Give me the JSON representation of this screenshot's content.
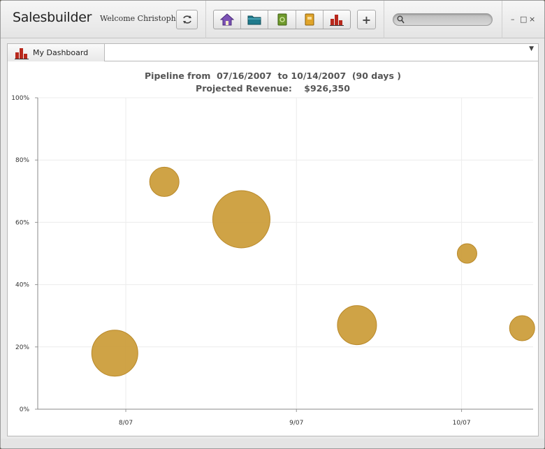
{
  "app": {
    "title": "Salesbuilder",
    "welcome": "Welcome Christophe"
  },
  "toolbar": {
    "refresh_icon": "refresh-icon",
    "nav_buttons": [
      {
        "name": "home",
        "icon": "home-icon",
        "color": "#6b3fa0"
      },
      {
        "name": "folder",
        "icon": "folder-icon",
        "color": "#1f7a8c"
      },
      {
        "name": "contacts",
        "icon": "green-book-icon",
        "color": "#6a8f2a"
      },
      {
        "name": "notes",
        "icon": "orange-book-icon",
        "color": "#d49a1c"
      },
      {
        "name": "dashboard",
        "icon": "bar-chart-icon",
        "color": "#b8281c"
      }
    ],
    "add_label": "+",
    "search": {
      "placeholder": "",
      "value": ""
    },
    "window_controls": [
      "–",
      "□",
      "×"
    ]
  },
  "tabs": [
    {
      "label": "My Dashboard",
      "icon": "bar-chart-icon",
      "active": true
    }
  ],
  "chart_data": {
    "type": "scatter",
    "title_line1": "Pipeline from  07/16/2007  to 10/14/2007  (90 days )",
    "title_line2": "Projected Revenue:    $926,350",
    "xlabel": "",
    "ylabel": "",
    "x_ticks": [
      "8/07",
      "9/07",
      "10/07"
    ],
    "x_tick_dates": [
      "2007-08-01",
      "2007-09-01",
      "2007-10-01"
    ],
    "xlim": [
      "2007-07-16",
      "2007-10-14"
    ],
    "y_ticks": [
      "0%",
      "20%",
      "40%",
      "60%",
      "80%",
      "100%"
    ],
    "ylim": [
      0,
      100
    ],
    "grid": true,
    "bubble_color": "#cc9e3c",
    "bubble_stroke": "#b9892a",
    "points": [
      {
        "x": "2007-07-30",
        "y": 18,
        "size": 33
      },
      {
        "x": "2007-08-08",
        "y": 73,
        "size": 21
      },
      {
        "x": "2007-08-22",
        "y": 61,
        "size": 41
      },
      {
        "x": "2007-09-12",
        "y": 27,
        "size": 28
      },
      {
        "x": "2007-10-02",
        "y": 50,
        "size": 14
      },
      {
        "x": "2007-10-12",
        "y": 26,
        "size": 18
      }
    ]
  }
}
